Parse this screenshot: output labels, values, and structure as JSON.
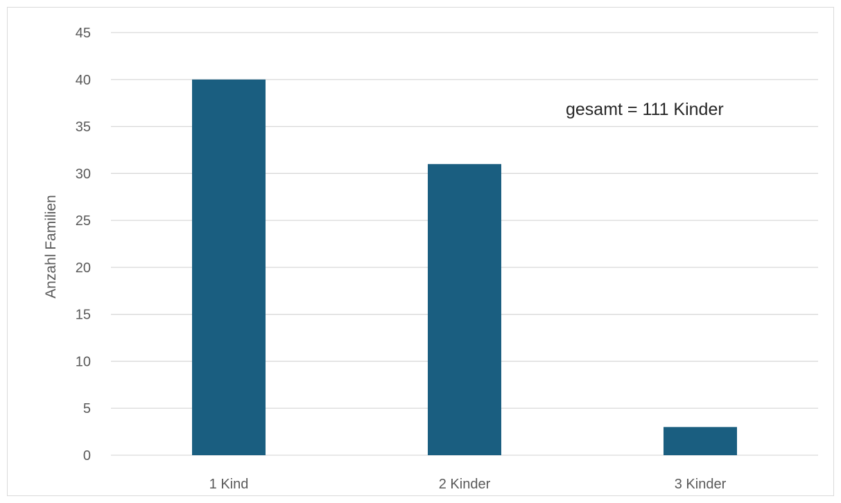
{
  "chart_data": {
    "type": "bar",
    "categories": [
      "1 Kind",
      "2 Kinder",
      "3 Kinder"
    ],
    "values": [
      40,
      31,
      3
    ],
    "xlabel": "",
    "ylabel": "Anzahl Familien",
    "ylim": [
      0,
      45
    ],
    "yticks": [
      0,
      5,
      10,
      15,
      20,
      25,
      30,
      35,
      40,
      45
    ],
    "grid": true,
    "legend": "none",
    "annotation": "gesamt = 111 Kinder",
    "bar_color": "#1a5e80",
    "grid_color": "#d9d9d9",
    "text_color": "#595959"
  }
}
